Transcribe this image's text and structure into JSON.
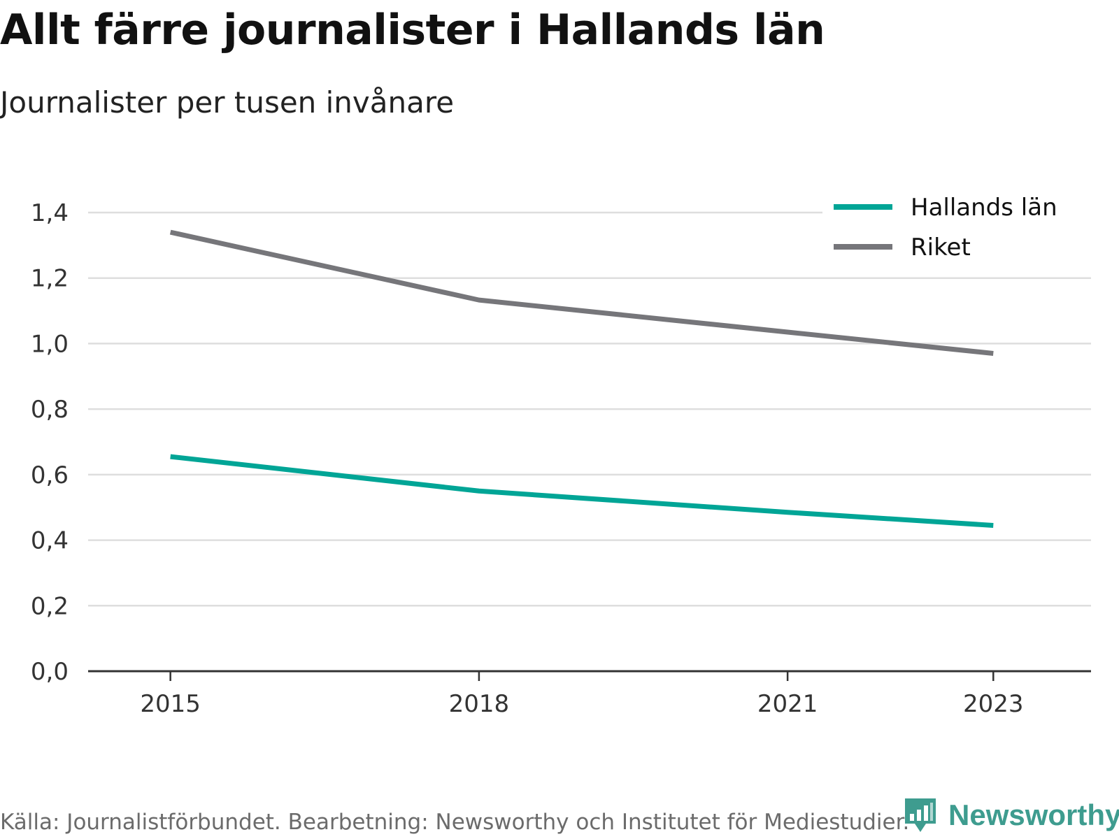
{
  "title": "Allt färre journalister i Hallands län",
  "subtitle": "Journalister per tusen invånare",
  "source": "Källa: Journalistförbundet. Bearbetning: Newsworthy och Institutet för Mediestudier.",
  "brand": "Newsworthy",
  "brand_icon": "newsworthy-logo-icon",
  "chart_data": {
    "type": "line",
    "x": [
      "2015",
      "2018",
      "2021",
      "2023"
    ],
    "x_numeric": [
      2015,
      2018,
      2021,
      2023
    ],
    "ylim": [
      0,
      1.4
    ],
    "yticks": [
      0,
      0.2,
      0.4,
      0.6,
      0.8,
      1.0,
      1.2,
      1.4
    ],
    "ytick_labels": [
      "0,0",
      "0,2",
      "0,4",
      "0,6",
      "0,8",
      "1,0",
      "1,2",
      "1,4"
    ],
    "grid": true,
    "legend_position": "top-right",
    "series": [
      {
        "name": "Hallands län",
        "color": "#00a596",
        "values": [
          0.655,
          0.55,
          0.485,
          0.445
        ]
      },
      {
        "name": "Riket",
        "color": "#76767a",
        "values": [
          1.34,
          1.133,
          1.035,
          0.97
        ]
      }
    ]
  }
}
